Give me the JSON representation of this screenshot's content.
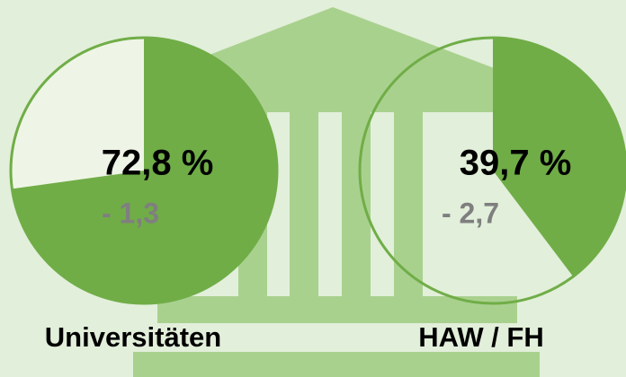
{
  "chart_data": [
    {
      "type": "pie",
      "title": "Universitäten",
      "values": [
        72.8
      ],
      "value_labels": [
        "72,8 %"
      ],
      "annotation": "- 1,3",
      "color": "#70ad47"
    },
    {
      "type": "pie",
      "title": "HAW / FH",
      "values": [
        39.7
      ],
      "value_labels": [
        "39,7 %"
      ],
      "annotation": "- 2,7",
      "color": "#70ad47"
    }
  ]
}
